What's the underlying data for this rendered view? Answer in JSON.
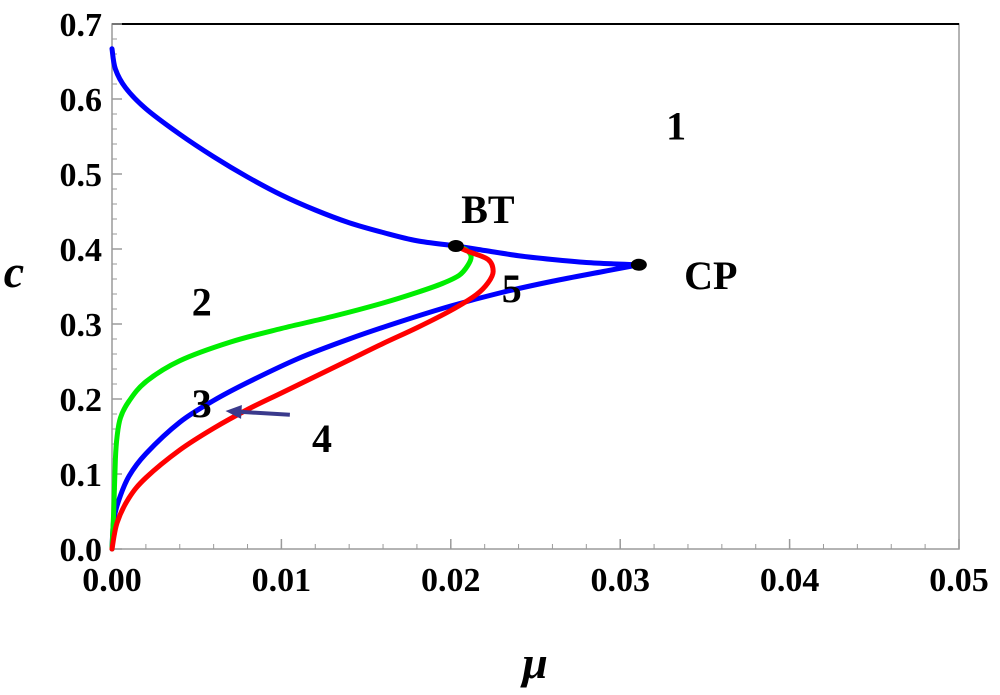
{
  "chart_data": {
    "type": "line",
    "xlabel": "μ",
    "ylabel": "c",
    "xlim": [
      0,
      0.05
    ],
    "ylim": [
      0,
      0.7
    ],
    "x_ticks": [
      0.0,
      0.01,
      0.02,
      0.03,
      0.04,
      0.05
    ],
    "x_tick_labels": [
      "0.00",
      "0.01",
      "0.02",
      "0.03",
      "0.04",
      "0.05"
    ],
    "y_ticks": [
      0.0,
      0.1,
      0.2,
      0.3,
      0.4,
      0.5,
      0.6,
      0.7
    ],
    "y_tick_labels": [
      "0.0",
      "0.1",
      "0.2",
      "0.3",
      "0.4",
      "0.5",
      "0.6",
      "0.7"
    ],
    "grid": false,
    "colors": {
      "blue": "#0000ff",
      "green": "#00ee00",
      "red": "#ff0000",
      "arrow": "#3a3a8c",
      "point": "#000000"
    },
    "series": [
      {
        "color": "#0000ff",
        "points": [
          [
            0.0,
            0.667
          ],
          [
            0.0002,
            0.64
          ],
          [
            0.0008,
            0.615
          ],
          [
            0.002,
            0.587
          ],
          [
            0.004,
            0.553
          ],
          [
            0.006,
            0.523
          ],
          [
            0.008,
            0.496
          ],
          [
            0.01,
            0.472
          ],
          [
            0.012,
            0.452
          ],
          [
            0.014,
            0.435
          ],
          [
            0.016,
            0.422
          ],
          [
            0.018,
            0.411
          ],
          [
            0.0203,
            0.404
          ],
          [
            0.022,
            0.398
          ],
          [
            0.024,
            0.391
          ],
          [
            0.026,
            0.386
          ],
          [
            0.028,
            0.382
          ],
          [
            0.0298,
            0.38
          ],
          [
            0.0311,
            0.379
          ]
        ]
      },
      {
        "color": "#0000ff",
        "points": [
          [
            0.0311,
            0.379
          ],
          [
            0.029,
            0.37
          ],
          [
            0.026,
            0.357
          ],
          [
            0.023,
            0.342
          ],
          [
            0.02,
            0.324
          ],
          [
            0.017,
            0.303
          ],
          [
            0.014,
            0.28
          ],
          [
            0.011,
            0.254
          ],
          [
            0.008,
            0.222
          ],
          [
            0.006,
            0.198
          ],
          [
            0.004,
            0.169
          ],
          [
            0.002,
            0.127
          ],
          [
            0.001,
            0.097
          ],
          [
            0.0004,
            0.065
          ],
          [
            0.0001,
            0.038
          ],
          [
            0.0,
            0.0
          ]
        ]
      },
      {
        "color": "#00ee00",
        "points": [
          [
            0.0,
            0.0
          ],
          [
            0.0001,
            0.05
          ],
          [
            0.0002,
            0.12
          ],
          [
            0.0003,
            0.15
          ],
          [
            0.0005,
            0.175
          ],
          [
            0.001,
            0.197
          ],
          [
            0.002,
            0.223
          ],
          [
            0.004,
            0.251
          ],
          [
            0.007,
            0.276
          ],
          [
            0.01,
            0.294
          ],
          [
            0.013,
            0.31
          ],
          [
            0.016,
            0.328
          ],
          [
            0.018,
            0.342
          ],
          [
            0.0195,
            0.354
          ],
          [
            0.0205,
            0.365
          ],
          [
            0.021,
            0.378
          ],
          [
            0.0212,
            0.39
          ],
          [
            0.0209,
            0.399
          ],
          [
            0.0203,
            0.404
          ]
        ]
      },
      {
        "color": "#ff0000",
        "points": [
          [
            0.0,
            0.0
          ],
          [
            0.0003,
            0.035
          ],
          [
            0.001,
            0.068
          ],
          [
            0.002,
            0.095
          ],
          [
            0.004,
            0.132
          ],
          [
            0.006,
            0.161
          ],
          [
            0.008,
            0.186
          ],
          [
            0.01,
            0.208
          ],
          [
            0.012,
            0.23
          ],
          [
            0.014,
            0.252
          ],
          [
            0.016,
            0.274
          ],
          [
            0.018,
            0.295
          ],
          [
            0.02,
            0.318
          ],
          [
            0.0215,
            0.339
          ],
          [
            0.0222,
            0.355
          ],
          [
            0.0225,
            0.37
          ],
          [
            0.0222,
            0.386
          ],
          [
            0.021,
            0.397
          ],
          [
            0.0203,
            0.404
          ]
        ]
      }
    ],
    "points": [
      {
        "label": "BT",
        "x": 0.0203,
        "y": 0.404
      },
      {
        "label": "CP",
        "x": 0.0311,
        "y": 0.379
      }
    ],
    "region_labels": [
      {
        "text": "1",
        "x": 0.0333,
        "y": 0.565
      },
      {
        "text": "2",
        "x": 0.0053,
        "y": 0.33
      },
      {
        "text": "3",
        "x": 0.0053,
        "y": 0.195
      },
      {
        "text": "4",
        "x": 0.0124,
        "y": 0.148
      },
      {
        "text": "5",
        "x": 0.0236,
        "y": 0.348
      }
    ],
    "arrow": {
      "from": [
        0.0105,
        0.179
      ],
      "to": [
        0.0067,
        0.184
      ]
    }
  }
}
